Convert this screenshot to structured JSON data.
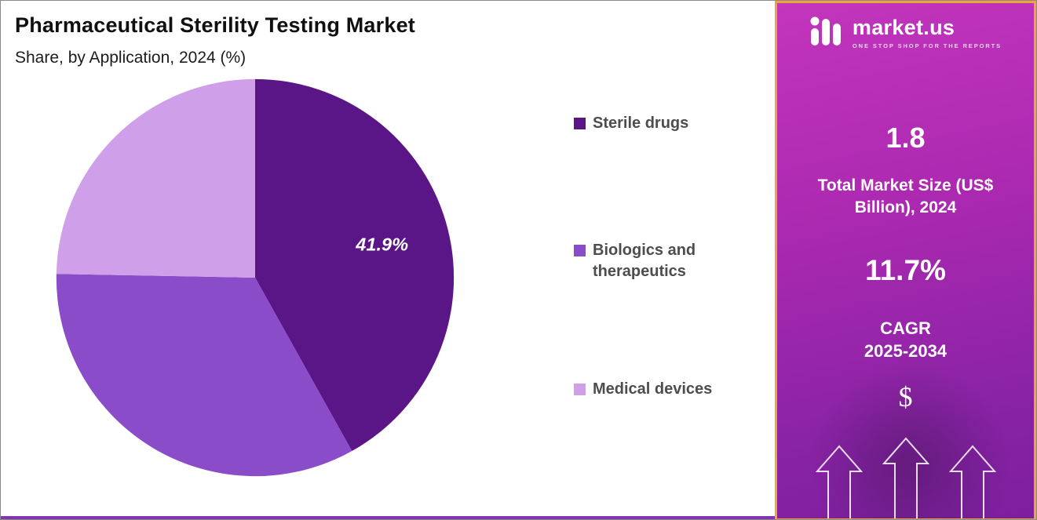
{
  "header": {
    "title": "Pharmaceutical Sterility Testing Market",
    "subtitle": "Share, by Application, 2024 (%)"
  },
  "chart_data": {
    "type": "pie",
    "title": "Pharmaceutical Sterility Testing Market",
    "subtitle": "Share, by Application, 2024 (%)",
    "unit": "%",
    "labels": [
      "Sterile drugs",
      "Biologics and therapeutics",
      "Medical devices"
    ],
    "values": [
      41.9,
      33.4,
      24.7
    ],
    "colors": [
      "#5a1687",
      "#8a4cc8",
      "#cfa0e9"
    ],
    "data_labels": [
      "41.9%",
      "",
      ""
    ],
    "start_angle_deg": 0,
    "direction": "clockwise",
    "legend_position": "right"
  },
  "legend": {
    "items": [
      {
        "label": "Sterile drugs",
        "color": "#5a1687"
      },
      {
        "label": "Biologics and therapeutics",
        "color": "#8a4cc8"
      },
      {
        "label": "Medical devices",
        "color": "#cfa0e9"
      }
    ]
  },
  "sidebar": {
    "logo_text": "market.us",
    "tagline": "ONE STOP SHOP FOR THE REPORTS",
    "market_size_value": "1.8",
    "market_size_label": "Total Market Size (US$ Billion), 2024",
    "cagr_value": "11.7%",
    "cagr_label": "CAGR",
    "cagr_period": "2025-2034",
    "currency_symbol": "$"
  },
  "colors": {
    "sidebar_border": "#f0a23c",
    "sidebar_gradient_top": "#c335bd",
    "sidebar_gradient_bottom": "#7c1f9e",
    "bottom_strip": "#8136b1",
    "legend_text": "#4d4d4d"
  }
}
